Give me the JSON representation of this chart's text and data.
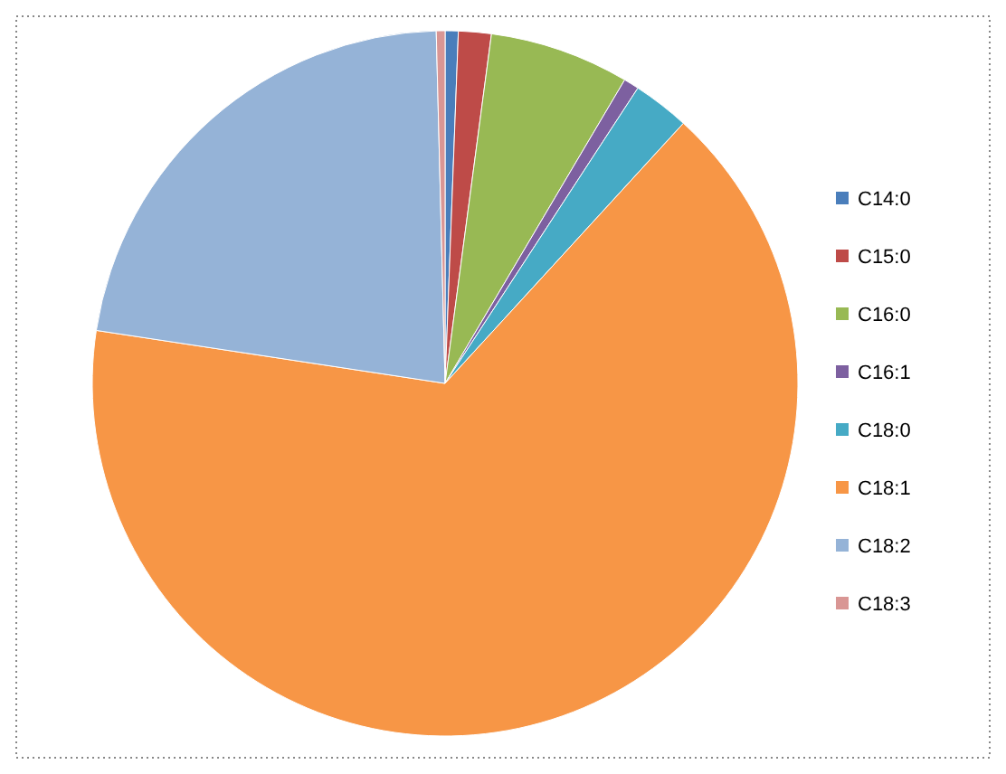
{
  "chart_data": {
    "type": "pie",
    "categories": [
      "C14:0",
      "C15:0",
      "C16:0",
      "C16:1",
      "C18:0",
      "C18:1",
      "C18:2",
      "C18:3"
    ],
    "values": [
      0.6,
      1.5,
      6.4,
      0.7,
      2.6,
      65.6,
      22.2,
      0.4
    ],
    "colors": [
      "#4a7ebb",
      "#be4b48",
      "#98b954",
      "#7d60a0",
      "#46aac5",
      "#f79646",
      "#95b3d7",
      "#d99694"
    ],
    "legend": "right"
  }
}
